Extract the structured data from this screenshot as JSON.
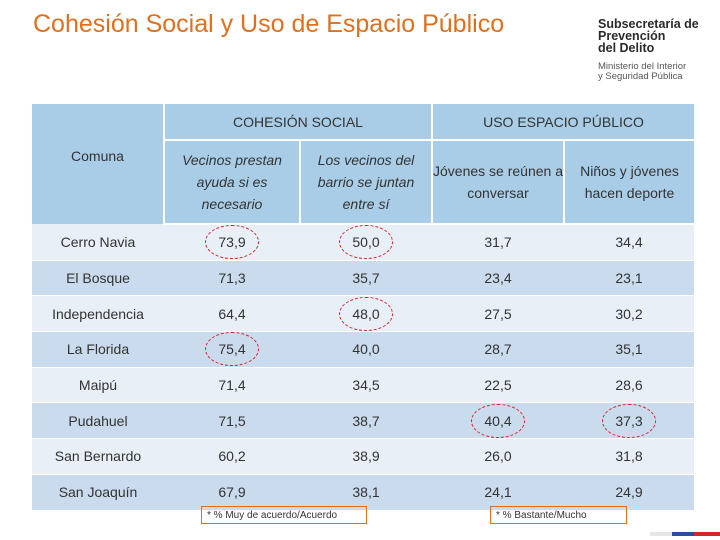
{
  "title": "Cohesión Social y Uso de Espacio Público",
  "logo": {
    "line1": "Subsecretaría de",
    "line2": "Prevención",
    "line3": "del Delito",
    "line4": "Ministerio del Interior",
    "line5": "y Seguridad Pública"
  },
  "table": {
    "comuna_header": "Comuna",
    "group_headers": [
      "COHESIÓN SOCIAL",
      "USO ESPACIO PÚBLICO"
    ],
    "col_headers": [
      "Vecinos prestan ayuda si es necesario",
      "Los vecinos del barrio se juntan entre sí",
      "Jóvenes se reúnen a conversar",
      "Niños y jóvenes hacen deporte"
    ],
    "rows": [
      {
        "comuna": "Cerro Navia",
        "v": [
          "73,9",
          "50,0",
          "31,7",
          "34,4"
        ]
      },
      {
        "comuna": "El Bosque",
        "v": [
          "71,3",
          "35,7",
          "23,4",
          "23,1"
        ]
      },
      {
        "comuna": "Independencia",
        "v": [
          "64,4",
          "48,0",
          "27,5",
          "30,2"
        ]
      },
      {
        "comuna": "La Florida",
        "v": [
          "75,4",
          "40,0",
          "28,7",
          "35,1"
        ]
      },
      {
        "comuna": "Maipú",
        "v": [
          "71,4",
          "34,5",
          "22,5",
          "28,6"
        ]
      },
      {
        "comuna": "Pudahuel",
        "v": [
          "71,5",
          "38,7",
          "40,4",
          "37,3"
        ]
      },
      {
        "comuna": "San Bernardo",
        "v": [
          "60,2",
          "38,9",
          "26,0",
          "31,8"
        ]
      },
      {
        "comuna": "San Joaquín",
        "v": [
          "67,9",
          "38,1",
          "24,1",
          "24,9"
        ]
      }
    ]
  },
  "notes": {
    "left": "* % Muy de acuerdo/Acuerdo",
    "right": "* % Bastante/Mucho"
  },
  "colors": {
    "title": "#e0701e",
    "header_bg": "#a9cde6",
    "row_odd": "#e8eff7",
    "row_even": "#c9dbed",
    "highlight_circle": "#d9252a"
  }
}
